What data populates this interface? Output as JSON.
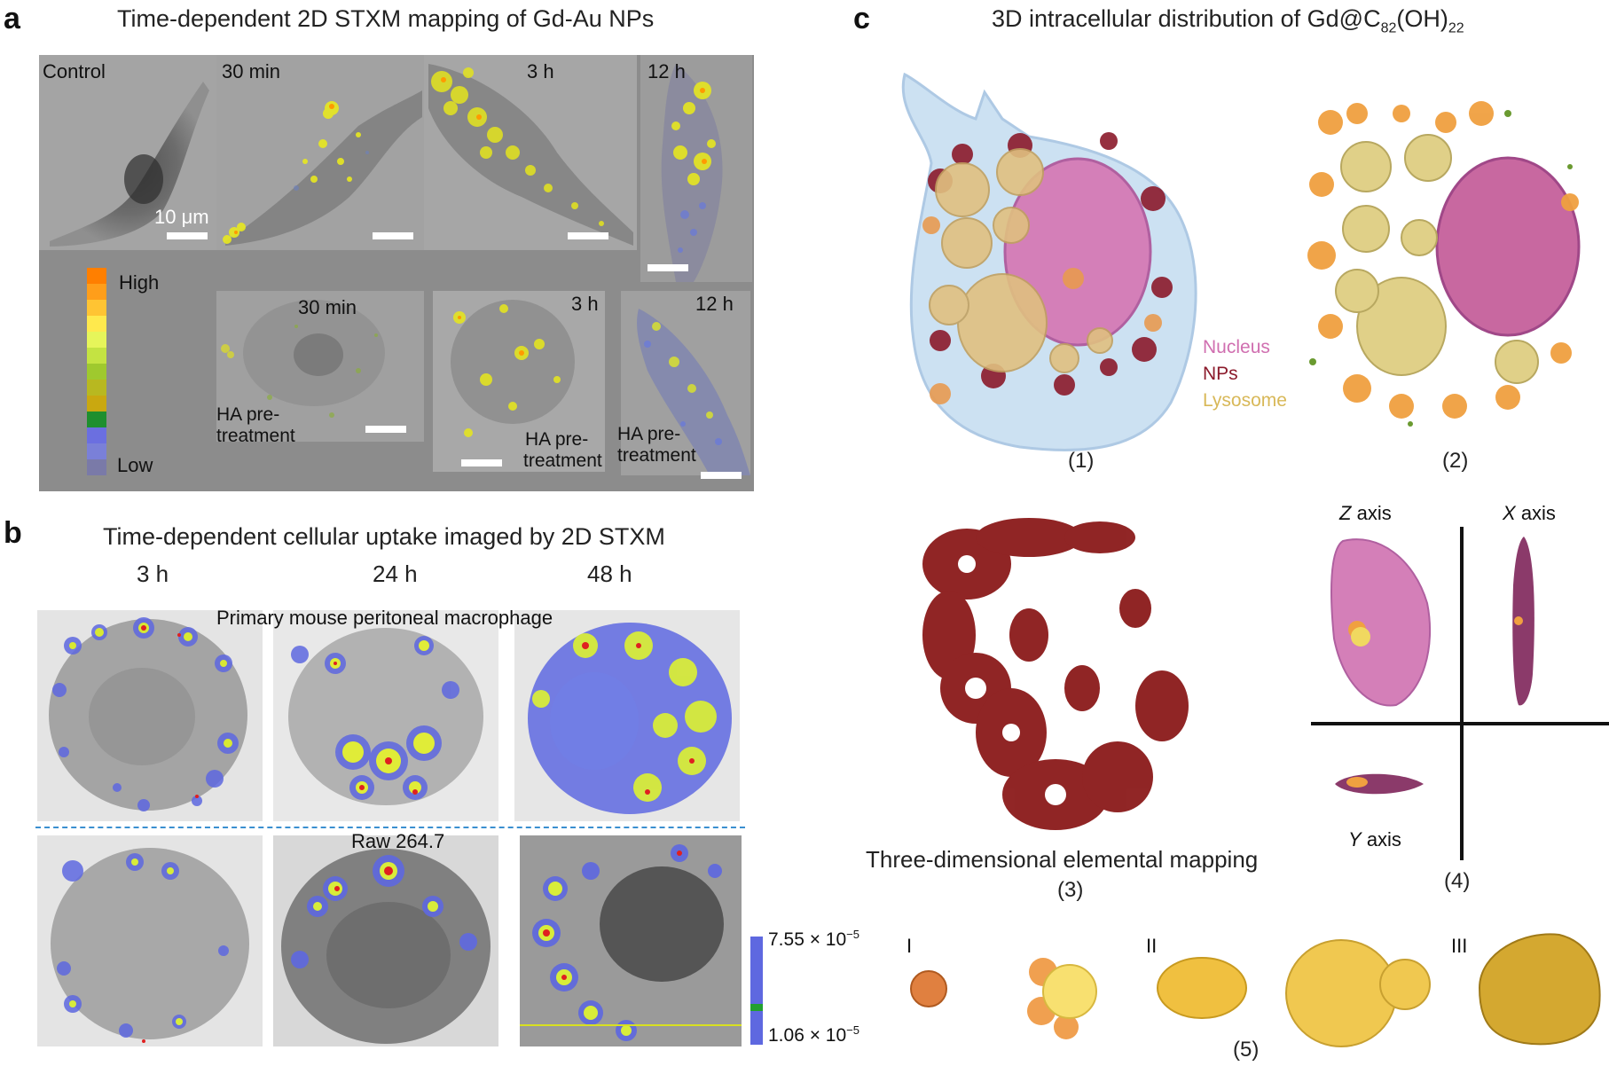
{
  "panel_a": {
    "letter": "a",
    "title": "Time-dependent 2D STXM mapping of Gd-Au NPs",
    "row1": {
      "control": "Control",
      "t30": "30 min",
      "t3": "3 h",
      "t12": "12 h"
    },
    "scalebar_label": "10 μm",
    "legend": {
      "high": "High",
      "low": "Low",
      "colors": [
        "#ff7f00",
        "#ff9e1a",
        "#ffc433",
        "#ffe94d",
        "#e6f55a",
        "#c4e342",
        "#9fc92e",
        "#b8b820",
        "#c9a810",
        "#1e8f2e",
        "#6b6fe0",
        "#7a80d8",
        "#7a7aa8"
      ]
    },
    "row2": {
      "t30": "30 min",
      "t3": "3 h",
      "t12": "12 h",
      "ha_line1": "HA pre-",
      "ha_line2": "treatment"
    }
  },
  "panel_b": {
    "letter": "b",
    "title": "Time-dependent cellular uptake imaged by 2D STXM",
    "times": [
      "3 h",
      "24 h",
      "48 h"
    ],
    "row1_label": "Primary mouse peritoneal macrophage",
    "row2_label": "Raw 264.7",
    "colorbar": {
      "max": "7.55 × 10",
      "max_exp": "−5",
      "min": "1.06 × 10",
      "min_exp": "−5"
    }
  },
  "panel_c": {
    "letter": "c",
    "title_prefix": "3D intracellular distribution of Gd@C",
    "title_sub1": "82",
    "title_mid": "(OH)",
    "title_sub2": "22",
    "legend": {
      "nucleus": "Nucleus",
      "nps": "NPs",
      "lysosome": "Lysosome"
    },
    "captions": {
      "c1": "(1)",
      "c2": "(2)",
      "c3": "(3)",
      "c4": "(4)",
      "c5": "(5)"
    },
    "mapping_label": "Three-dimensional elemental mapping",
    "axes": {
      "z": "Z",
      "x": "X",
      "y": "Y",
      "axis_word": "axis"
    },
    "roman": [
      "I",
      "II",
      "III"
    ],
    "colors": {
      "nucleus": "#d47fb8",
      "nps": "#8b1a2b",
      "lysosome": "#e0c060"
    }
  }
}
